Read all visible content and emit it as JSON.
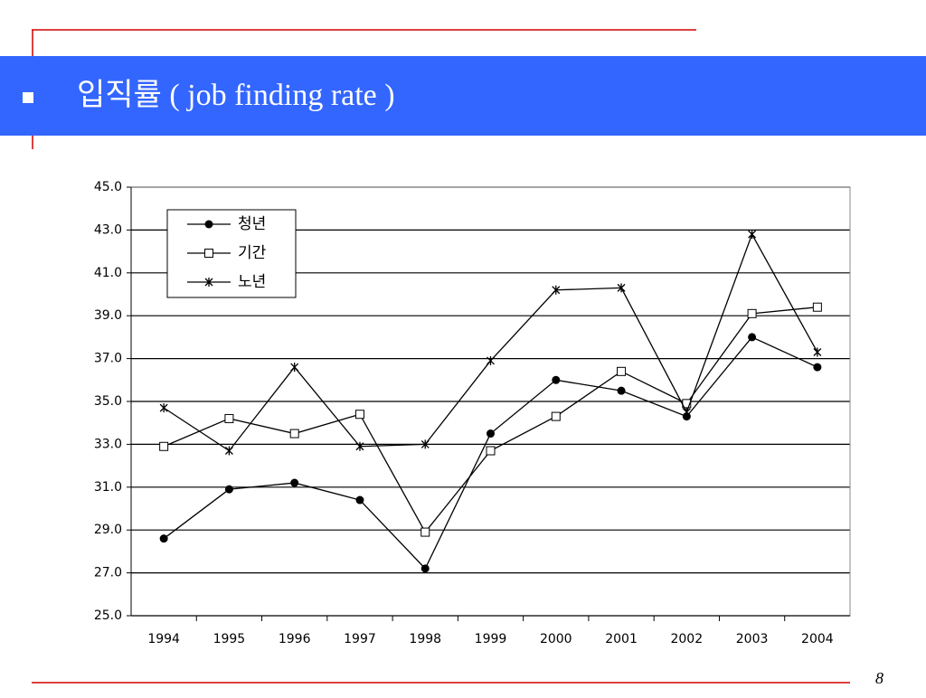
{
  "header": {
    "title": "입직률 ( job finding rate )"
  },
  "page_number": "8",
  "chart_data": {
    "type": "line",
    "categories": [
      "1994",
      "1995",
      "1996",
      "1997",
      "1998",
      "1999",
      "2000",
      "2001",
      "2002",
      "2003",
      "2004"
    ],
    "series": [
      {
        "name": "청년",
        "color": "#000000",
        "marker": "circle",
        "values": [
          28.6,
          30.9,
          31.2,
          30.4,
          27.2,
          33.5,
          36.0,
          35.5,
          34.3,
          38.0,
          36.6
        ]
      },
      {
        "name": "기간",
        "color": "#000000",
        "marker": "square",
        "values": [
          32.9,
          34.2,
          33.5,
          34.4,
          28.9,
          32.7,
          34.3,
          36.4,
          34.9,
          39.1,
          39.4
        ]
      },
      {
        "name": "노년",
        "color": "#000000",
        "marker": "asterisk",
        "values": [
          34.7,
          32.7,
          36.6,
          32.9,
          33.0,
          36.9,
          40.2,
          40.3,
          34.5,
          42.8,
          37.3
        ]
      }
    ],
    "ylim": [
      25,
      45
    ],
    "yticks": [
      {
        "value": 25,
        "label": "25.0"
      },
      {
        "value": 27,
        "label": "27.0"
      },
      {
        "value": 29,
        "label": "29.0"
      },
      {
        "value": 31,
        "label": "31.0"
      },
      {
        "value": 33,
        "label": "33.0"
      },
      {
        "value": 35,
        "label": "35.0"
      },
      {
        "value": 37,
        "label": "37.0"
      },
      {
        "value": 39,
        "label": "39.0"
      },
      {
        "value": 41,
        "label": "41.0"
      },
      {
        "value": 43,
        "label": "43.0"
      },
      {
        "value": 45,
        "label": "45.0"
      }
    ],
    "grid": true,
    "legend": "upper left"
  }
}
